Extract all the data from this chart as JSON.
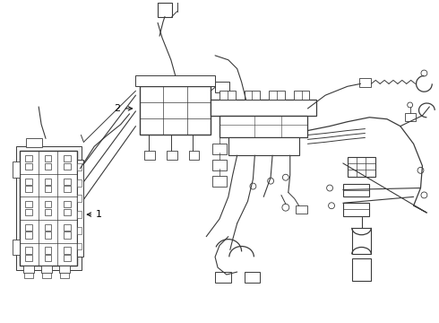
{
  "background_color": "#ffffff",
  "line_color": "#3a3a3a",
  "line_width": 0.9,
  "thin_lw": 0.6,
  "label_1": "1",
  "label_2": "2",
  "fig_width": 4.9,
  "fig_height": 3.6,
  "dpi": 100
}
